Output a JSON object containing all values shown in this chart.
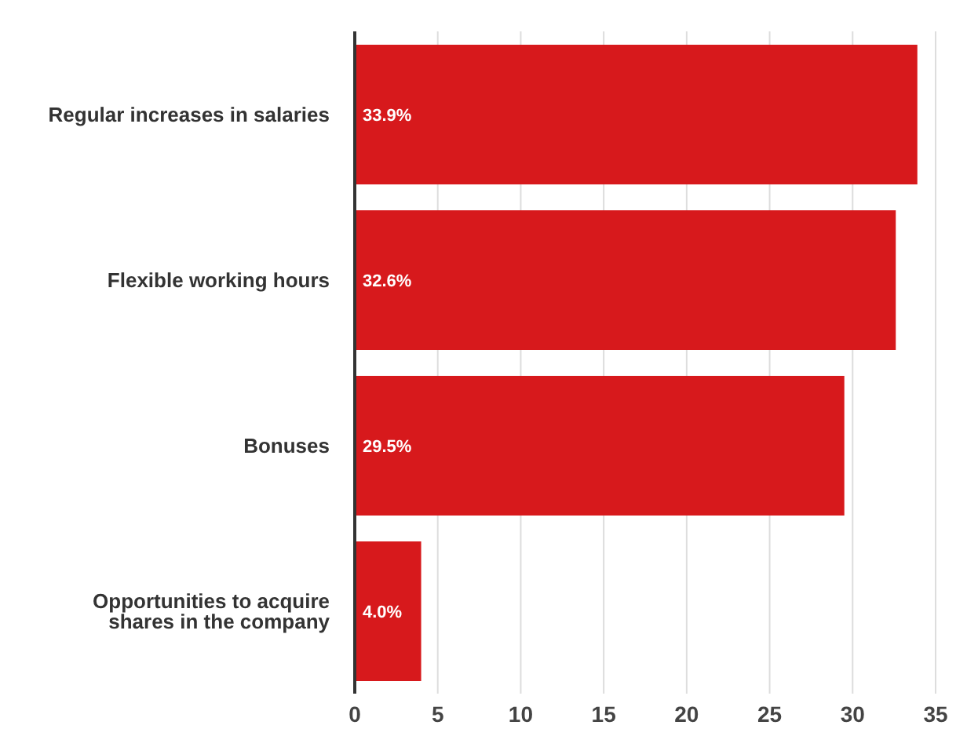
{
  "chart_data": {
    "type": "bar",
    "orientation": "horizontal",
    "categories": [
      "Regular increases in salaries",
      "Flexible working hours",
      "Bonuses",
      "Opportunities to acquire shares in the company"
    ],
    "values": [
      33.9,
      32.6,
      29.5,
      4.0
    ],
    "value_labels": [
      "33.9%",
      "32.6%",
      "29.5%",
      "4.0%"
    ],
    "color": "#d7191c",
    "xlim": [
      0,
      35
    ],
    "xticks": [
      0,
      5,
      10,
      15,
      20,
      25,
      30,
      35
    ],
    "grid": "x"
  }
}
